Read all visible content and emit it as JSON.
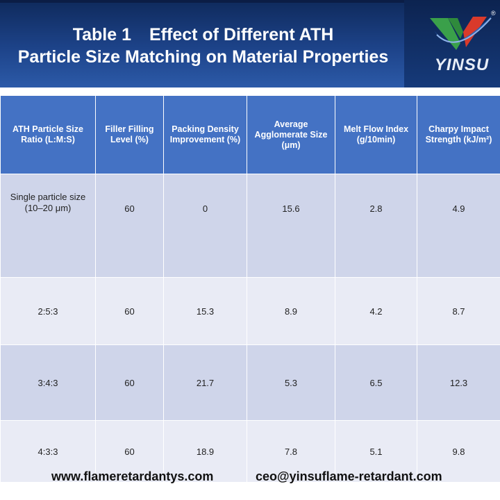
{
  "title": {
    "table_number": "Table 1",
    "line1": "Effect of Different ATH",
    "line2": "Particle Size Matching on Material Properties"
  },
  "logo": {
    "brand": "YINSU",
    "registered": "®",
    "icon": "yinsu-v-logo-icon"
  },
  "table": {
    "headers": [
      "ATH Particle Size Ratio (L:M:S)",
      "Filler Filling Level (%)",
      "Packing Density Improvement (%)",
      "Average Agglomerate Size (μm)",
      "Melt Flow Index (g/10min)",
      "Charpy Impact Strength (kJ/m²)"
    ],
    "rows": [
      [
        "Single particle size (10–20 μm)",
        "60",
        "0",
        "15.6",
        "2.8",
        "4.9"
      ],
      [
        "2:5:3",
        "60",
        "15.3",
        "8.9",
        "4.2",
        "8.7"
      ],
      [
        "3:4:3",
        "60",
        "21.7",
        "5.3",
        "6.5",
        "12.3"
      ],
      [
        "4:3:3",
        "60",
        "18.9",
        "7.8",
        "5.1",
        "9.8"
      ]
    ]
  },
  "footer": {
    "website": "www.flameretardantys.com",
    "email": "ceo@yinsuflame-retardant.com"
  },
  "colors": {
    "banner": "#1d4389",
    "header_fill": "#4472c4",
    "row_dark": "#cfd5ea",
    "row_light": "#e9ebf5",
    "logo_green": "#3aa04a",
    "logo_red": "#d93a2b",
    "logo_blue": "#2a64b8"
  }
}
